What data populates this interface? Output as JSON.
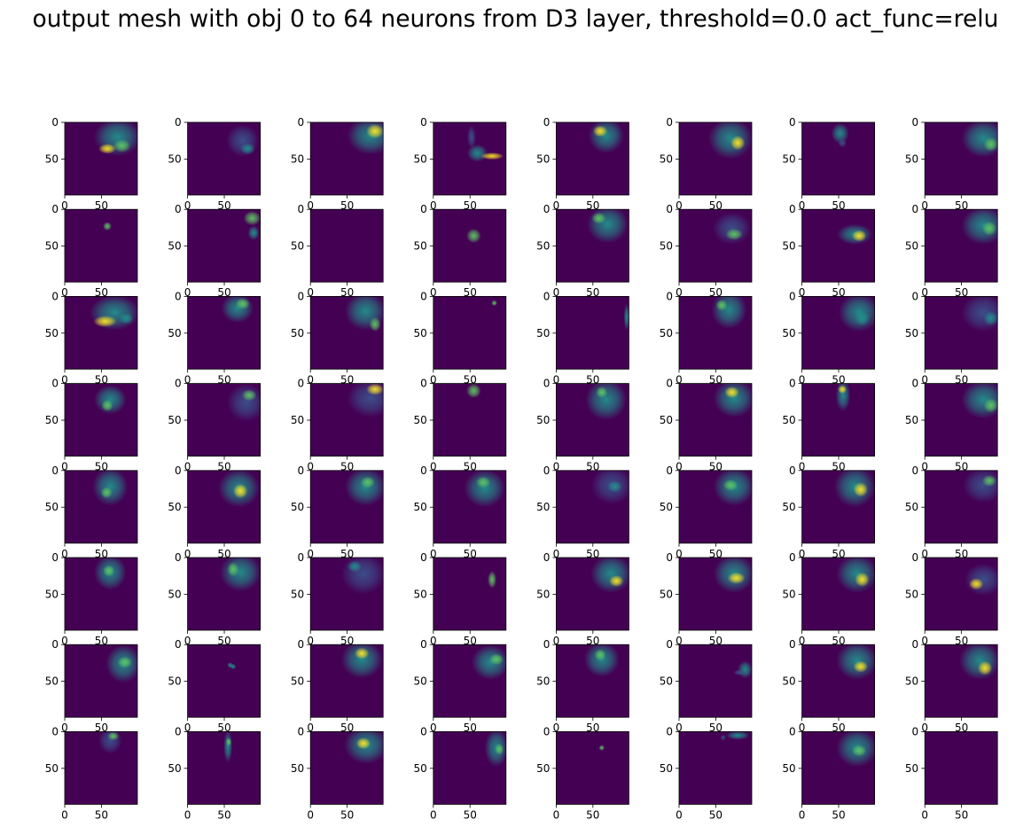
{
  "figure": {
    "title": "output mesh with obj 0 to 64 neurons from D3 layer, threshold=0.0 act_func=relu"
  },
  "chart_data": {
    "type": "heatmap",
    "title": "output mesh with obj 0 to 64 neurons from D3 layer, threshold=0.0 act_func=relu",
    "layout": {
      "rows": 8,
      "cols": 8,
      "panel_count": 64
    },
    "colormap": "viridis",
    "colors": {
      "background": "#440154",
      "low": "#3b528b",
      "mid": "#21918c",
      "high": "#5ec962",
      "peak": "#fde725"
    },
    "xlim": [
      0,
      99
    ],
    "ylim": [
      99,
      0
    ],
    "x_tick_labels": [
      "0",
      "50"
    ],
    "y_tick_labels": [
      "0",
      "50"
    ],
    "panels": [
      {
        "blobs": [
          [
            72,
            20,
            32,
            26,
            0.55
          ],
          [
            58,
            36,
            12,
            7,
            0.9
          ],
          [
            78,
            32,
            12,
            9,
            0.75
          ]
        ]
      },
      {
        "blobs": [
          [
            75,
            25,
            22,
            22,
            0.35
          ],
          [
            82,
            36,
            10,
            8,
            0.6
          ]
        ]
      },
      {
        "blobs": [
          [
            82,
            18,
            32,
            26,
            0.5
          ],
          [
            88,
            12,
            12,
            10,
            0.85
          ]
        ]
      },
      {
        "blobs": [
          [
            60,
            42,
            14,
            12,
            0.5
          ],
          [
            80,
            46,
            16,
            5,
            0.8
          ],
          [
            52,
            20,
            6,
            16,
            0.4
          ]
        ]
      },
      {
        "blobs": [
          [
            68,
            18,
            24,
            24,
            0.45
          ],
          [
            60,
            12,
            10,
            8,
            0.8
          ]
        ]
      },
      {
        "blobs": [
          [
            70,
            22,
            30,
            28,
            0.45
          ],
          [
            80,
            28,
            10,
            10,
            0.85
          ]
        ]
      },
      {
        "blobs": [
          [
            52,
            15,
            12,
            14,
            0.55
          ],
          [
            55,
            28,
            6,
            6,
            0.4
          ]
        ]
      },
      {
        "blobs": [
          [
            80,
            22,
            30,
            26,
            0.5
          ],
          [
            90,
            30,
            10,
            10,
            0.7
          ]
        ]
      },
      {
        "blobs": [
          [
            58,
            23,
            6,
            6,
            0.75
          ]
        ]
      },
      {
        "blobs": [
          [
            88,
            12,
            12,
            10,
            0.7
          ],
          [
            90,
            32,
            8,
            10,
            0.45
          ]
        ]
      },
      {
        "blobs": []
      },
      {
        "blobs": [
          [
            55,
            36,
            10,
            10,
            0.7
          ]
        ]
      },
      {
        "blobs": [
          [
            70,
            20,
            28,
            26,
            0.45
          ],
          [
            58,
            12,
            10,
            8,
            0.75
          ]
        ]
      },
      {
        "blobs": [
          [
            72,
            26,
            26,
            22,
            0.4
          ],
          [
            75,
            34,
            12,
            8,
            0.75
          ]
        ]
      },
      {
        "blobs": [
          [
            72,
            34,
            24,
            14,
            0.45
          ],
          [
            78,
            36,
            10,
            8,
            0.8
          ]
        ]
      },
      {
        "blobs": [
          [
            80,
            22,
            30,
            26,
            0.45
          ],
          [
            88,
            26,
            10,
            10,
            0.75
          ]
        ]
      },
      {
        "blobs": [
          [
            68,
            22,
            34,
            24,
            0.5
          ],
          [
            55,
            34,
            16,
            8,
            0.85
          ],
          [
            84,
            30,
            10,
            8,
            0.6
          ]
        ]
      },
      {
        "blobs": [
          [
            68,
            16,
            22,
            20,
            0.45
          ],
          [
            75,
            10,
            10,
            8,
            0.75
          ]
        ]
      },
      {
        "blobs": [
          [
            75,
            20,
            28,
            26,
            0.45
          ],
          [
            88,
            38,
            8,
            10,
            0.7
          ]
        ]
      },
      {
        "blobs": [
          [
            83,
            9,
            4,
            4,
            0.65
          ]
        ]
      },
      {
        "blobs": [
          [
            96,
            28,
            4,
            18,
            0.55
          ]
        ]
      },
      {
        "blobs": [
          [
            68,
            18,
            24,
            26,
            0.45
          ],
          [
            58,
            12,
            8,
            8,
            0.7
          ]
        ]
      },
      {
        "blobs": [
          [
            78,
            22,
            28,
            26,
            0.45
          ],
          [
            82,
            30,
            10,
            10,
            0.55
          ]
        ]
      },
      {
        "blobs": [
          [
            80,
            22,
            30,
            26,
            0.4
          ],
          [
            90,
            30,
            10,
            10,
            0.6
          ]
        ]
      },
      {
        "blobs": [
          [
            62,
            22,
            22,
            20,
            0.45
          ],
          [
            58,
            30,
            8,
            8,
            0.7
          ]
        ]
      },
      {
        "blobs": [
          [
            80,
            26,
            26,
            26,
            0.35
          ],
          [
            84,
            16,
            10,
            8,
            0.65
          ]
        ]
      },
      {
        "blobs": [
          [
            82,
            20,
            32,
            26,
            0.3
          ],
          [
            88,
            8,
            12,
            8,
            0.8
          ]
        ]
      },
      {
        "blobs": [
          [
            55,
            10,
            10,
            10,
            0.7
          ]
        ]
      },
      {
        "blobs": [
          [
            68,
            22,
            28,
            28,
            0.45
          ],
          [
            62,
            12,
            8,
            8,
            0.7
          ]
        ]
      },
      {
        "blobs": [
          [
            75,
            20,
            28,
            26,
            0.45
          ],
          [
            72,
            12,
            10,
            8,
            0.8
          ]
        ]
      },
      {
        "blobs": [
          [
            56,
            16,
            10,
            22,
            0.5
          ],
          [
            55,
            8,
            6,
            6,
            0.8
          ]
        ]
      },
      {
        "blobs": [
          [
            80,
            22,
            30,
            26,
            0.5
          ],
          [
            90,
            30,
            10,
            10,
            0.75
          ]
        ]
      },
      {
        "blobs": [
          [
            62,
            22,
            24,
            26,
            0.45
          ],
          [
            57,
            30,
            8,
            8,
            0.7
          ]
        ]
      },
      {
        "blobs": [
          [
            70,
            24,
            28,
            26,
            0.45
          ],
          [
            72,
            28,
            10,
            10,
            0.85
          ]
        ]
      },
      {
        "blobs": [
          [
            75,
            22,
            28,
            26,
            0.45
          ],
          [
            78,
            16,
            10,
            8,
            0.75
          ]
        ]
      },
      {
        "blobs": [
          [
            70,
            24,
            28,
            26,
            0.45
          ],
          [
            68,
            16,
            10,
            8,
            0.75
          ]
        ]
      },
      {
        "blobs": [
          [
            76,
            20,
            28,
            26,
            0.4
          ],
          [
            80,
            22,
            10,
            8,
            0.6
          ]
        ]
      },
      {
        "blobs": [
          [
            75,
            22,
            28,
            26,
            0.45
          ],
          [
            70,
            20,
            10,
            8,
            0.75
          ]
        ]
      },
      {
        "blobs": [
          [
            72,
            22,
            28,
            28,
            0.45
          ],
          [
            80,
            26,
            10,
            10,
            0.85
          ]
        ]
      },
      {
        "blobs": [
          [
            80,
            20,
            28,
            24,
            0.4
          ],
          [
            88,
            14,
            10,
            8,
            0.7
          ]
        ]
      },
      {
        "blobs": [
          [
            62,
            20,
            22,
            24,
            0.45
          ],
          [
            60,
            18,
            8,
            8,
            0.75
          ]
        ]
      },
      {
        "blobs": [
          [
            72,
            20,
            28,
            26,
            0.5
          ],
          [
            62,
            16,
            8,
            10,
            0.75
          ]
        ]
      },
      {
        "blobs": [
          [
            72,
            22,
            30,
            28,
            0.3
          ],
          [
            60,
            12,
            10,
            8,
            0.55
          ]
        ]
      },
      {
        "blobs": [
          [
            80,
            30,
            6,
            12,
            0.7
          ]
        ]
      },
      {
        "blobs": [
          [
            75,
            22,
            28,
            26,
            0.45
          ],
          [
            82,
            32,
            10,
            8,
            0.8
          ]
        ]
      },
      {
        "blobs": [
          [
            75,
            22,
            28,
            26,
            0.45
          ],
          [
            78,
            28,
            12,
            8,
            0.85
          ]
        ]
      },
      {
        "blobs": [
          [
            75,
            22,
            28,
            26,
            0.45
          ],
          [
            82,
            30,
            10,
            10,
            0.85
          ]
        ]
      },
      {
        "blobs": [
          [
            80,
            30,
            26,
            22,
            0.4
          ],
          [
            70,
            36,
            10,
            8,
            0.8
          ]
        ]
      },
      {
        "blobs": [
          [
            80,
            26,
            24,
            26,
            0.45
          ],
          [
            82,
            24,
            10,
            8,
            0.75
          ]
        ]
      },
      {
        "blobs": [
          [
            58,
            28,
            4,
            4,
            0.6
          ],
          [
            62,
            30,
            4,
            4,
            0.55
          ]
        ]
      },
      {
        "blobs": [
          [
            70,
            20,
            28,
            26,
            0.45
          ],
          [
            70,
            12,
            10,
            8,
            0.8
          ]
        ]
      },
      {
        "blobs": [
          [
            78,
            24,
            26,
            24,
            0.45
          ],
          [
            86,
            20,
            10,
            8,
            0.75
          ]
        ]
      },
      {
        "blobs": [
          [
            62,
            20,
            24,
            24,
            0.45
          ],
          [
            60,
            14,
            8,
            8,
            0.75
          ]
        ]
      },
      {
        "blobs": [
          [
            90,
            34,
            10,
            12,
            0.5
          ],
          [
            82,
            38,
            8,
            4,
            0.3
          ]
        ]
      },
      {
        "blobs": [
          [
            75,
            22,
            28,
            26,
            0.45
          ],
          [
            80,
            30,
            10,
            8,
            0.85
          ]
        ]
      },
      {
        "blobs": [
          [
            75,
            22,
            28,
            26,
            0.45
          ],
          [
            82,
            32,
            10,
            10,
            0.85
          ]
        ]
      },
      {
        "blobs": [
          [
            62,
            12,
            16,
            18,
            0.4
          ],
          [
            66,
            6,
            8,
            6,
            0.75
          ]
        ]
      },
      {
        "blobs": [
          [
            55,
            20,
            6,
            22,
            0.5
          ],
          [
            56,
            14,
            4,
            6,
            0.7
          ]
        ]
      },
      {
        "blobs": [
          [
            76,
            18,
            30,
            26,
            0.5
          ],
          [
            72,
            16,
            10,
            8,
            0.85
          ]
        ]
      },
      {
        "blobs": [
          [
            86,
            22,
            16,
            26,
            0.45
          ],
          [
            90,
            24,
            6,
            8,
            0.75
          ]
        ]
      },
      {
        "blobs": [
          [
            62,
            22,
            4,
            4,
            0.7
          ]
        ]
      },
      {
        "blobs": [
          [
            80,
            5,
            16,
            6,
            0.55
          ],
          [
            60,
            8,
            4,
            4,
            0.4
          ]
        ]
      },
      {
        "blobs": [
          [
            75,
            22,
            28,
            26,
            0.45
          ],
          [
            78,
            26,
            10,
            8,
            0.75
          ]
        ]
      },
      {
        "blobs": []
      }
    ]
  }
}
